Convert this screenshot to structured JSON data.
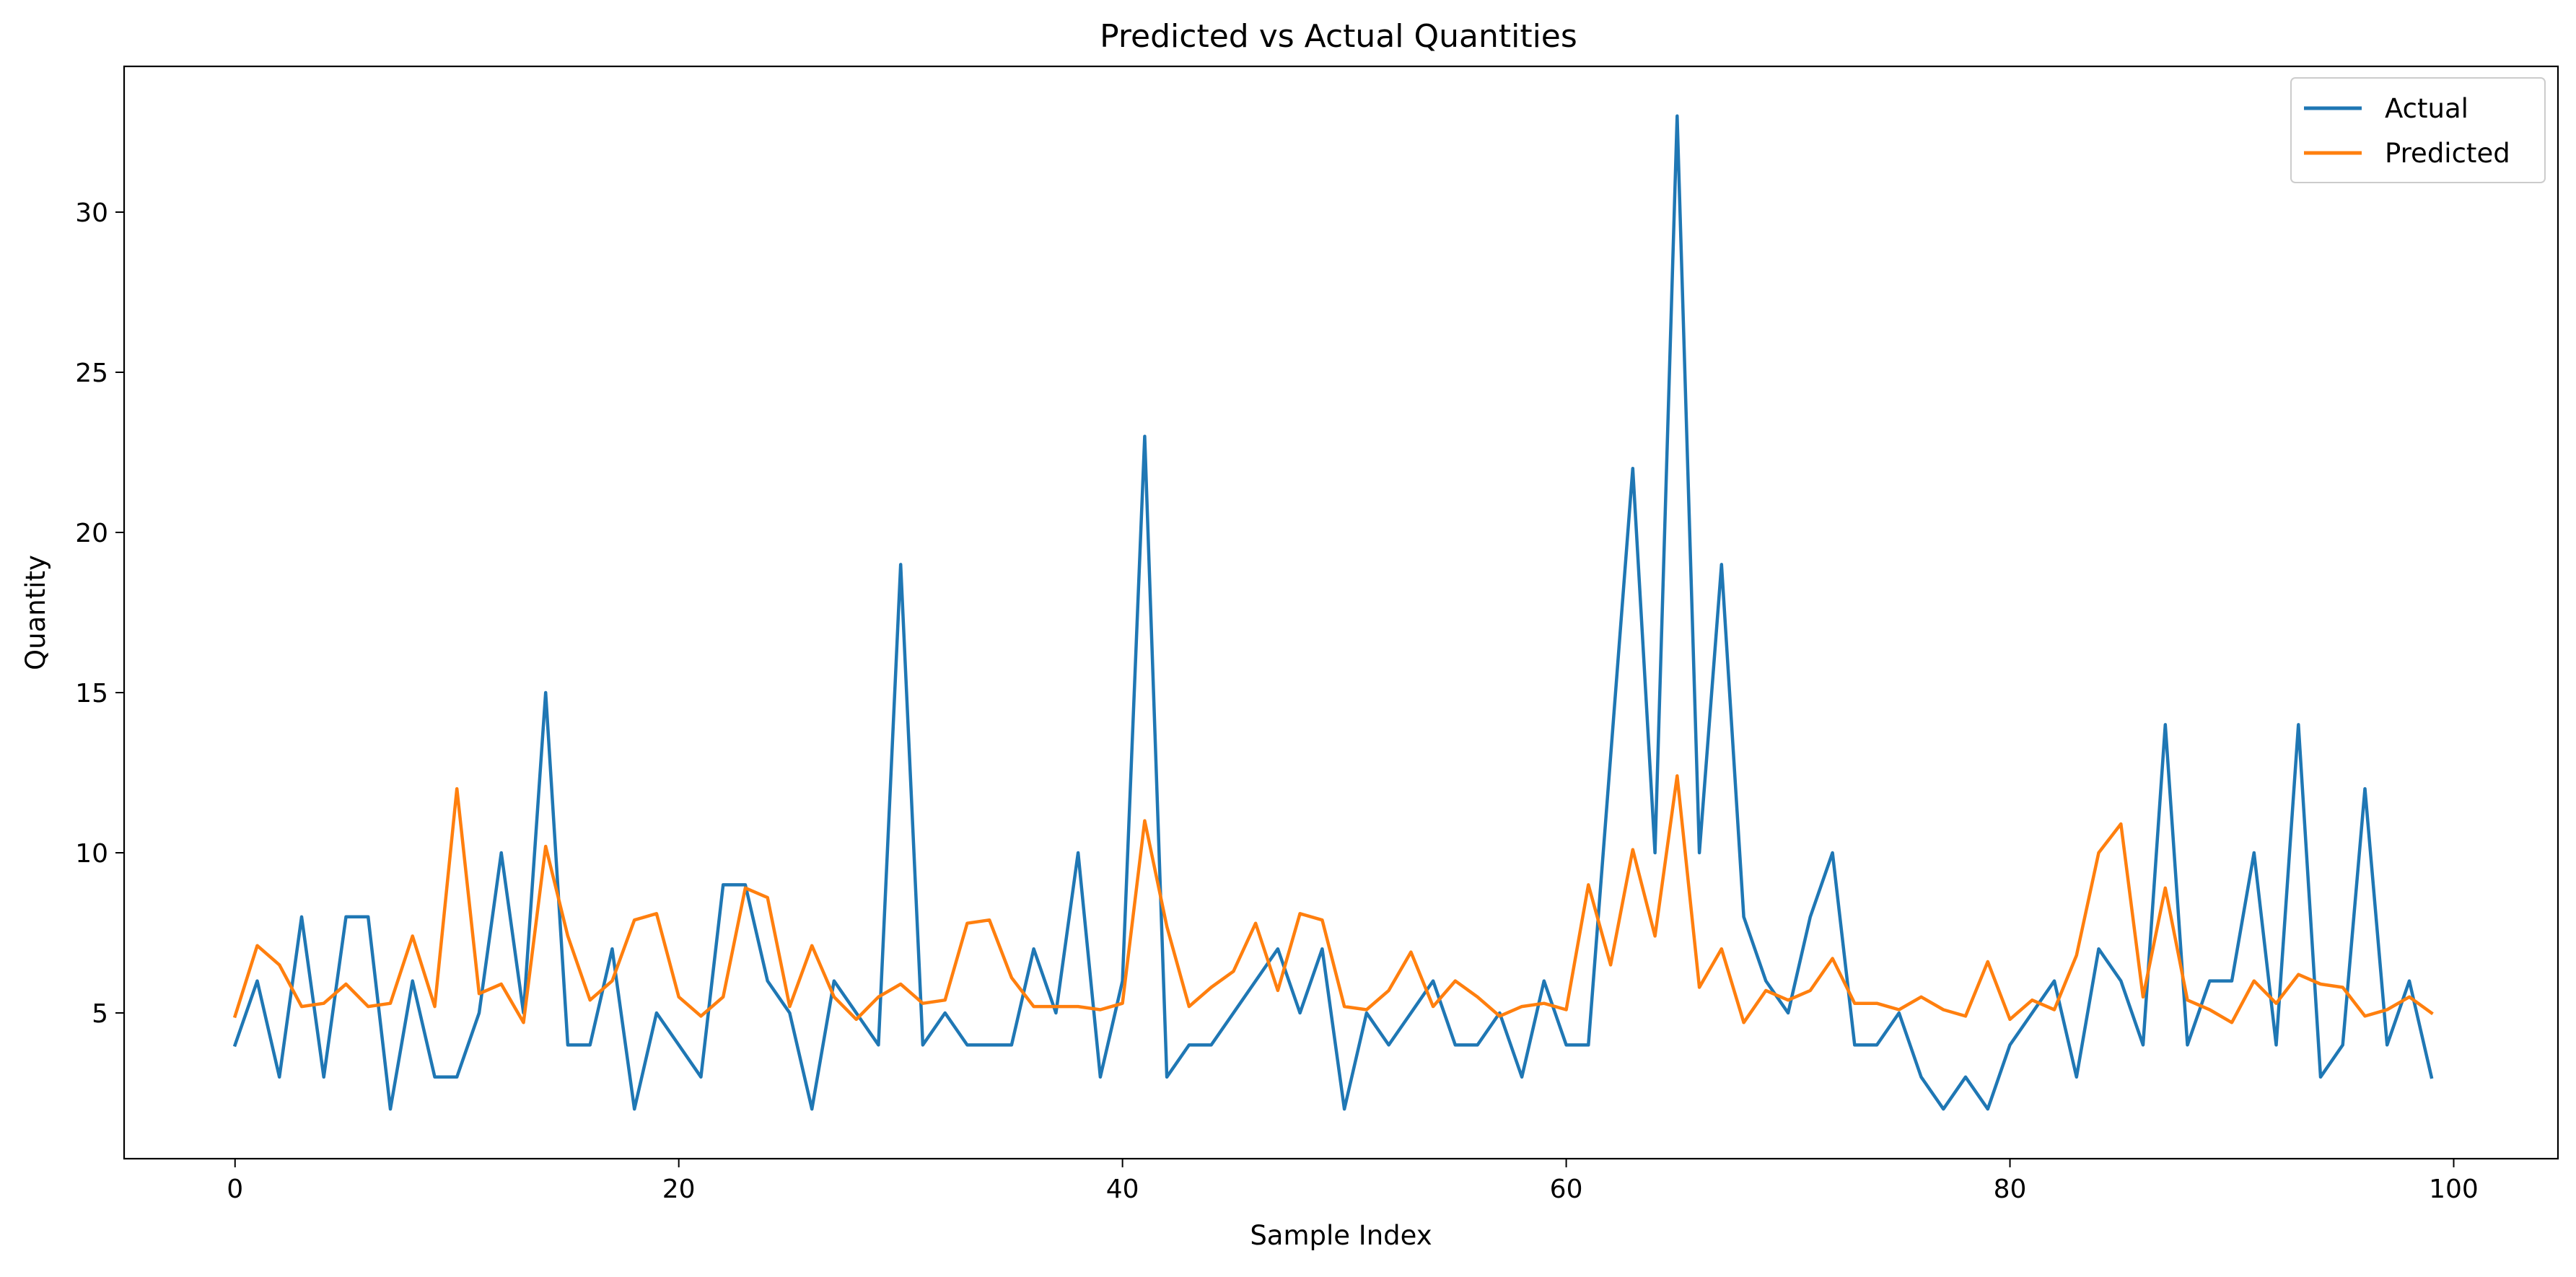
{
  "chart_data": {
    "type": "line",
    "title": "Predicted vs Actual Quantities",
    "xlabel": "Sample Index",
    "ylabel": "Quantity",
    "xlim": [
      -5,
      104.7
    ],
    "ylim": [
      0.45,
      34.55
    ],
    "xticks": [
      0,
      20,
      40,
      60,
      80,
      100
    ],
    "yticks": [
      5,
      10,
      15,
      20,
      25,
      30
    ],
    "legend_position": "top-right",
    "grid": false,
    "series": [
      {
        "name": "Actual",
        "color": "#1f77b4",
        "values": [
          4,
          6,
          3,
          8,
          3,
          8,
          8,
          2,
          6,
          3,
          3,
          5,
          10,
          5,
          15,
          4,
          4,
          7,
          2,
          5,
          4,
          3,
          9,
          9,
          6,
          5,
          2,
          6,
          5,
          4,
          19,
          4,
          5,
          4,
          4,
          4,
          7,
          5,
          10,
          3,
          6,
          23,
          3,
          4,
          4,
          5,
          6,
          7,
          5,
          7,
          2,
          5,
          4,
          5,
          6,
          4,
          4,
          5,
          3,
          6,
          4,
          4,
          13,
          22,
          10,
          33,
          10,
          19,
          8,
          6,
          5,
          8,
          10,
          4,
          4,
          5,
          3,
          2,
          3,
          2,
          4,
          5,
          6,
          3,
          7,
          6,
          4,
          14,
          4,
          6,
          6,
          10,
          4,
          14,
          3,
          4,
          12,
          4,
          6,
          3
        ]
      },
      {
        "name": "Predicted",
        "color": "#ff7f0e",
        "values": [
          4.9,
          7.1,
          6.5,
          5.2,
          5.3,
          5.9,
          5.2,
          5.3,
          7.4,
          5.2,
          12.0,
          5.6,
          5.9,
          4.7,
          10.2,
          7.4,
          5.4,
          6.0,
          7.9,
          8.1,
          5.5,
          4.9,
          5.5,
          8.9,
          8.6,
          5.2,
          7.1,
          5.5,
          4.8,
          5.5,
          5.9,
          5.3,
          5.4,
          7.8,
          7.9,
          6.1,
          5.2,
          5.2,
          5.2,
          5.1,
          5.3,
          11.0,
          7.7,
          5.2,
          5.8,
          6.3,
          7.8,
          5.7,
          8.1,
          7.9,
          5.2,
          5.1,
          5.7,
          6.9,
          5.2,
          6.0,
          5.5,
          4.9,
          5.2,
          5.3,
          5.1,
          9.0,
          6.5,
          10.1,
          7.4,
          12.4,
          5.8,
          7.0,
          4.7,
          5.7,
          5.4,
          5.7,
          6.7,
          5.3,
          5.3,
          5.1,
          5.5,
          5.1,
          4.9,
          6.6,
          4.8,
          5.4,
          5.1,
          6.8,
          10.0,
          10.9,
          5.5,
          8.9,
          5.4,
          5.1,
          4.7,
          6.0,
          5.3,
          6.2,
          5.9,
          5.8,
          4.9,
          5.1,
          5.5,
          5.0
        ]
      }
    ]
  }
}
